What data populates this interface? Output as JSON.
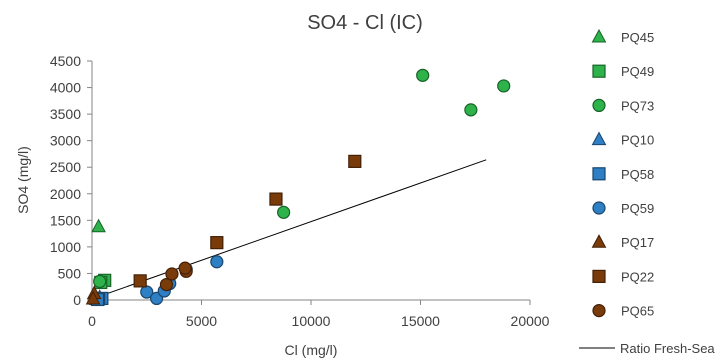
{
  "chart_data": {
    "type": "scatter",
    "title": "SO4 - Cl (IC)",
    "xlabel": "Cl (mg/l)",
    "ylabel": "SO4 (mg/l)",
    "xlim": [
      0,
      20000
    ],
    "ylim": [
      0,
      4500
    ],
    "x_ticks": [
      0,
      5000,
      10000,
      15000,
      20000
    ],
    "y_ticks": [
      0,
      500,
      1000,
      1500,
      2000,
      2500,
      3000,
      3500,
      4000,
      4500
    ],
    "x_tick_labels": [
      "0",
      "5000",
      "10000",
      "15000",
      "20000"
    ],
    "y_tick_labels": [
      "0",
      "500",
      "1000",
      "1500",
      "2000",
      "2500",
      "3000",
      "3500",
      "4000",
      "4500"
    ],
    "grid": false,
    "legend_position": "right",
    "series": [
      {
        "name": "PQ45",
        "marker": "triangle",
        "color": "#2db34a",
        "points": [
          [
            300,
            1380
          ],
          [
            100,
            30
          ]
        ]
      },
      {
        "name": "PQ49",
        "marker": "square",
        "color": "#2db34a",
        "points": [
          [
            580,
            370
          ],
          [
            400,
            330
          ]
        ]
      },
      {
        "name": "PQ73",
        "marker": "circle",
        "color": "#2db34a",
        "points": [
          [
            15100,
            4230
          ],
          [
            18800,
            4030
          ],
          [
            17300,
            3580
          ],
          [
            8750,
            1650
          ],
          [
            350,
            350
          ]
        ]
      },
      {
        "name": "PQ10",
        "marker": "triangle",
        "color": "#2e7fc4",
        "points": [
          [
            150,
            20
          ],
          [
            350,
            50
          ],
          [
            200,
            10
          ]
        ]
      },
      {
        "name": "PQ58",
        "marker": "square",
        "color": "#2e7fc4",
        "points": [
          [
            450,
            30
          ],
          [
            300,
            20
          ],
          [
            250,
            10
          ]
        ]
      },
      {
        "name": "PQ59",
        "marker": "circle",
        "color": "#2e7fc4",
        "points": [
          [
            5700,
            720
          ],
          [
            2500,
            150
          ],
          [
            2950,
            30
          ],
          [
            3300,
            170
          ],
          [
            3550,
            310
          ],
          [
            4300,
            580
          ]
        ]
      },
      {
        "name": "PQ17",
        "marker": "triangle",
        "color": "#7a3b0b",
        "points": [
          [
            100,
            120
          ],
          [
            50,
            20
          ]
        ]
      },
      {
        "name": "PQ22",
        "marker": "square",
        "color": "#7a3b0b",
        "points": [
          [
            12000,
            2610
          ],
          [
            8400,
            1900
          ],
          [
            5700,
            1080
          ],
          [
            2200,
            360
          ]
        ]
      },
      {
        "name": "PQ65",
        "marker": "circle",
        "color": "#7a3b0b",
        "points": [
          [
            3650,
            490
          ],
          [
            4300,
            540
          ],
          [
            4250,
            600
          ],
          [
            3400,
            290
          ]
        ]
      },
      {
        "name": "Ratio Fresh-Sea",
        "marker": "line",
        "color": "#000000",
        "points": [
          [
            0,
            20
          ],
          [
            18000,
            2640
          ]
        ]
      }
    ]
  }
}
